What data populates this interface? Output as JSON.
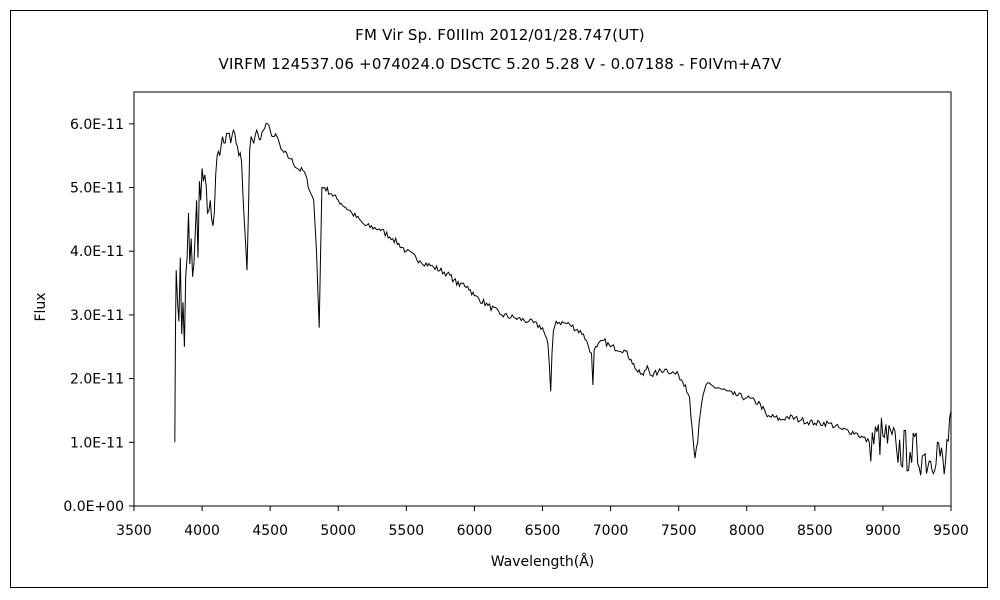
{
  "chart_data": {
    "type": "line",
    "title": "FM Vir    Sp. F0IIIm    2012/01/28.747(UT)",
    "subtitle": "VIRFM 124537.06 +074024.0 DSCTC 5.20 5.28 V - 0.07188 - F0IVm+A7V",
    "xlabel": "Wavelength(Å)",
    "ylabel": "Flux",
    "xlim": [
      3500,
      9500
    ],
    "ylim": [
      0,
      6.5e-11
    ],
    "x_ticks": [
      3500,
      4000,
      4500,
      5000,
      5500,
      6000,
      6500,
      7000,
      7500,
      8000,
      8500,
      9000,
      9500
    ],
    "x_tick_labels": [
      "3500",
      "4000",
      "4500",
      "5000",
      "5500",
      "6000",
      "6500",
      "7000",
      "7500",
      "8000",
      "8500",
      "9000",
      "9500"
    ],
    "y_ticks": [
      0,
      1e-11,
      2e-11,
      3e-11,
      4e-11,
      5e-11,
      6e-11
    ],
    "y_tick_labels": [
      "0.0E+00",
      "1.0E-11",
      "2.0E-11",
      "3.0E-11",
      "4.0E-11",
      "5.0E-11",
      "6.0E-11"
    ],
    "grid": false,
    "legend": "none",
    "line_color": "#000000",
    "series": [
      {
        "values_unit": "1e-11",
        "x": [
          3800,
          3805,
          3810,
          3820,
          3830,
          3840,
          3850,
          3860,
          3870,
          3880,
          3890,
          3900,
          3910,
          3920,
          3930,
          3940,
          3950,
          3960,
          3970,
          3980,
          3990,
          4000,
          4020,
          4040,
          4060,
          4080,
          4090,
          4100,
          4110,
          4130,
          4150,
          4170,
          4190,
          4210,
          4230,
          4250,
          4270,
          4290,
          4300,
          4320,
          4330,
          4340,
          4350,
          4360,
          4380,
          4400,
          4420,
          4450,
          4480,
          4500,
          4520,
          4550,
          4580,
          4600,
          4650,
          4700,
          4750,
          4800,
          4820,
          4840,
          4850,
          4860,
          4870,
          4880,
          4900,
          4950,
          5000,
          5100,
          5200,
          5300,
          5400,
          5500,
          5600,
          5700,
          5800,
          5850,
          5890,
          5900,
          5950,
          6000,
          6100,
          6200,
          6300,
          6400,
          6500,
          6540,
          6560,
          6570,
          6580,
          6600,
          6700,
          6800,
          6860,
          6870,
          6880,
          6900,
          6950,
          7000,
          7100,
          7150,
          7200,
          7240,
          7270,
          7300,
          7350,
          7400,
          7500,
          7550,
          7580,
          7600,
          7620,
          7640,
          7650,
          7680,
          7700,
          7800,
          7900,
          8000,
          8100,
          8150,
          8200,
          8250,
          8300,
          8400,
          8500,
          8600,
          8700,
          8800,
          8900,
          9000,
          9100,
          9200,
          9300,
          9350,
          9400,
          9450,
          9500
        ],
        "values": [
          1.0,
          2.8,
          3.7,
          3.2,
          2.9,
          3.9,
          2.7,
          3.2,
          2.5,
          3.6,
          3.9,
          4.6,
          3.8,
          4.2,
          3.6,
          3.8,
          4.3,
          4.8,
          3.9,
          5.1,
          4.8,
          5.3,
          5.2,
          4.6,
          4.8,
          4.4,
          4.6,
          5.2,
          5.5,
          5.5,
          5.8,
          5.7,
          5.85,
          5.7,
          5.9,
          5.7,
          5.5,
          5.4,
          4.9,
          4.1,
          3.7,
          4.6,
          5.6,
          5.8,
          5.7,
          5.9,
          5.75,
          5.9,
          6.0,
          5.9,
          5.8,
          5.8,
          5.6,
          5.55,
          5.45,
          5.3,
          5.25,
          4.9,
          4.8,
          4.0,
          3.4,
          2.8,
          3.9,
          5.0,
          5.0,
          4.9,
          4.8,
          4.6,
          4.4,
          4.35,
          4.2,
          4.0,
          3.85,
          3.75,
          3.65,
          3.55,
          3.45,
          3.5,
          3.45,
          3.3,
          3.15,
          3.0,
          2.95,
          2.9,
          2.8,
          2.55,
          1.8,
          2.4,
          2.75,
          2.9,
          2.85,
          2.7,
          2.4,
          1.9,
          2.45,
          2.5,
          2.6,
          2.5,
          2.45,
          2.3,
          2.1,
          2.05,
          2.2,
          2.05,
          2.1,
          2.15,
          2.05,
          1.9,
          1.7,
          1.2,
          0.75,
          1.0,
          1.3,
          1.75,
          1.9,
          1.85,
          1.75,
          1.7,
          1.6,
          1.4,
          1.4,
          1.35,
          1.4,
          1.35,
          1.3,
          1.3,
          1.2,
          1.15,
          1.0,
          1.1,
          0.9,
          0.85,
          0.8,
          0.7,
          1.0,
          0.5,
          1.5
        ]
      }
    ]
  }
}
